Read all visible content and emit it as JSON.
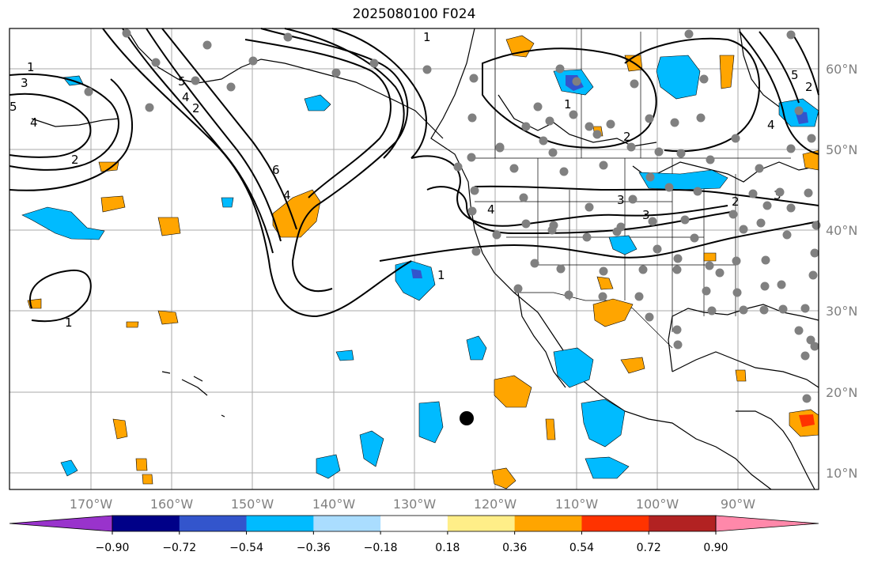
{
  "title": "2025080100 F024",
  "map": {
    "lon_ticks": [
      "170°W",
      "160°W",
      "150°W",
      "140°W",
      "130°W",
      "120°W",
      "110°W",
      "100°W",
      "90°W"
    ],
    "lat_ticks": [
      "60°N",
      "50°N",
      "40°N",
      "30°N",
      "20°N",
      "10°N"
    ],
    "extent": {
      "lon_min": -180,
      "lon_max": -80,
      "lat_min": 8,
      "lat_max": 65
    }
  },
  "colorbar": {
    "ticks": [
      "−0.90",
      "−0.72",
      "−0.54",
      "−0.36",
      "−0.18",
      "0.18",
      "0.36",
      "0.54",
      "0.72",
      "0.90"
    ],
    "colors": [
      "#9933cc",
      "#000088",
      "#3355cc",
      "#00bbff",
      "#aaddff",
      "#ffffff",
      "#ffee88",
      "#ffa500",
      "#ff3300",
      "#b22222",
      "#ff88aa"
    ]
  },
  "contour_labels": [
    "1",
    "3",
    "5",
    "4",
    "2",
    "5",
    "2",
    "4",
    "6",
    "4",
    "1",
    "4",
    "3",
    "2",
    "1",
    "2",
    "1",
    "5",
    "4",
    "3",
    "2",
    "3",
    "1"
  ],
  "colors": {
    "grid": "#aaaaaa",
    "contour": "#000000",
    "station": "#808080",
    "marker": "#000000"
  }
}
